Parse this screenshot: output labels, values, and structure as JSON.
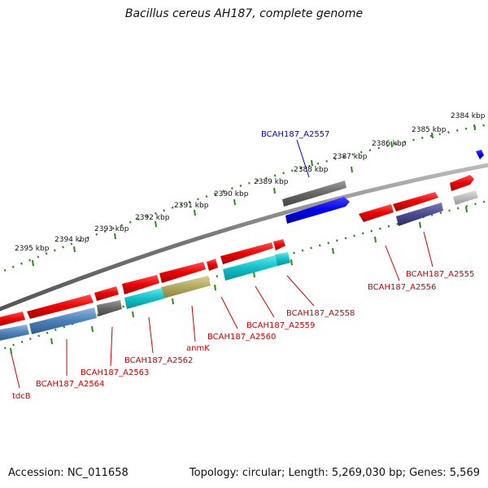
{
  "title": "Bacillus cereus AH187, complete genome",
  "footer": {
    "accession": "Accession: NC_011658",
    "summary": "Topology: circular; Length: 5,269,030 bp; Genes: 5,569"
  },
  "ticks": [
    "2384 kbp",
    "2385 kbp",
    "2386 kbp",
    "2387 kbp",
    "2388 kbp",
    "2389 kbp",
    "2390 kbp",
    "2391 kbp",
    "2392 kbp",
    "2393 kbp",
    "2394 kbp",
    "2395 kbp"
  ],
  "genes": [
    {
      "label": "BCAH187_A2555",
      "color": "#dd0000",
      "selected": false
    },
    {
      "label": "BCAH187_A2556",
      "color": "#dd0000",
      "selected": false
    },
    {
      "label": "BCAH187_A2557",
      "color": "#0000cc",
      "selected": true
    },
    {
      "label": "BCAH187_A2558",
      "color": "#dd0000",
      "selected": false
    },
    {
      "label": "BCAH187_A2559",
      "color": "#dd0000",
      "selected": false
    },
    {
      "label": "BCAH187_A2560",
      "color": "#dd0000",
      "selected": false
    },
    {
      "label": "anmK",
      "color": "#dd0000",
      "selected": false
    },
    {
      "label": "BCAH187_A2562",
      "color": "#dd0000",
      "selected": false
    },
    {
      "label": "BCAH187_A2563",
      "color": "#dd0000",
      "selected": false
    },
    {
      "label": "BCAH187_A2564",
      "color": "#dd0000",
      "selected": false
    },
    {
      "label": "tdcB",
      "color": "#dd0000",
      "selected": false
    }
  ],
  "colors": {
    "forward_gene": "#ee0000",
    "reverse_gene": "#ee0000",
    "selected_gene": "#0000ee",
    "backbone": "#777777",
    "ruler": "#2a8a1a"
  }
}
